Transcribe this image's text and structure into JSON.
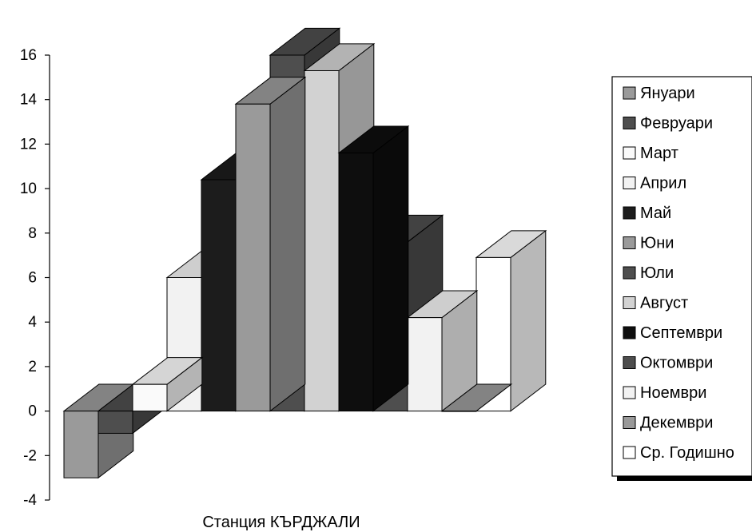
{
  "chart_data": {
    "type": "bar",
    "title": "",
    "xlabel": "Станция КЪРДЖАЛИ",
    "ylabel": "",
    "ylim": [
      -4,
      16
    ],
    "yticks": [
      "-4",
      "-2",
      "0",
      "2",
      "4",
      "6",
      "8",
      "10",
      "12",
      "14",
      "16"
    ],
    "grid": false,
    "legend_position": "right",
    "series": [
      {
        "name": "Януари",
        "value": -3,
        "color": "#9a9a9a"
      },
      {
        "name": "Февруари",
        "value": -1,
        "color": "#4e4e4e"
      },
      {
        "name": "Март",
        "value": 1.2,
        "color": "#fafafa"
      },
      {
        "name": "Април",
        "value": 6,
        "color": "#f2f2f2"
      },
      {
        "name": "Май",
        "value": 10.4,
        "color": "#1c1c1c"
      },
      {
        "name": "Юни",
        "value": 13.8,
        "color": "#9a9a9a"
      },
      {
        "name": "Юли",
        "value": 16,
        "color": "#4e4e4e"
      },
      {
        "name": "Август",
        "value": 15.3,
        "color": "#d2d2d2"
      },
      {
        "name": "Септември",
        "value": 11.6,
        "color": "#0e0e0e"
      },
      {
        "name": "Октомври",
        "value": 7.6,
        "color": "#4e4e4e"
      },
      {
        "name": "Ноември",
        "value": 4.2,
        "color": "#f2f2f2"
      },
      {
        "name": "Декември",
        "value": 0,
        "color": "#9a9a9a"
      },
      {
        "name": "Ср. Годишно",
        "value": 6.9,
        "color": "#ffffff"
      }
    ]
  }
}
